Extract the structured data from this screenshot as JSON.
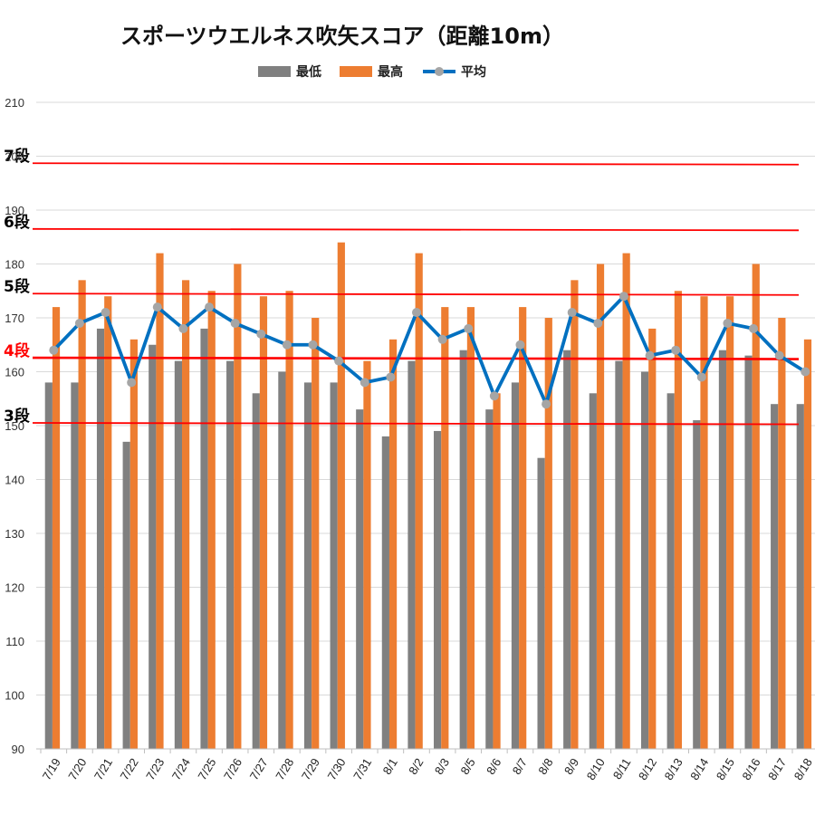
{
  "chart_data": {
    "type": "bar",
    "title": "スポーツウエルネス吹矢スコア（距離10m）",
    "xlabel": "",
    "ylabel": "",
    "ylim": [
      90,
      210
    ],
    "yticks": [
      90,
      100,
      110,
      120,
      130,
      140,
      150,
      160,
      170,
      180,
      190,
      200,
      210
    ],
    "legend_position": "top-center",
    "grid": true,
    "categories": [
      "7/19",
      "7/20",
      "7/21",
      "7/22",
      "7/23",
      "7/24",
      "7/25",
      "7/26",
      "7/27",
      "7/28",
      "7/29",
      "7/30",
      "7/31",
      "8/1",
      "8/2",
      "8/3",
      "8/5",
      "8/6",
      "8/7",
      "8/8",
      "8/9",
      "8/10",
      "8/11",
      "8/12",
      "8/13",
      "8/14",
      "8/15",
      "8/16",
      "8/17",
      "8/18"
    ],
    "series": [
      {
        "name": "最低",
        "type": "bar",
        "color": "#808080",
        "values": [
          158,
          158,
          168,
          147,
          165,
          162,
          168,
          162,
          156,
          160,
          158,
          158,
          153,
          148,
          162,
          149,
          164,
          153,
          158,
          144,
          164,
          156,
          162,
          160,
          156,
          151,
          164,
          163,
          154,
          154
        ]
      },
      {
        "name": "最高",
        "type": "bar",
        "color": "#ED7D31",
        "values": [
          172,
          177,
          174,
          166,
          182,
          177,
          175,
          180,
          174,
          175,
          170,
          184,
          162,
          166,
          182,
          172,
          172,
          156,
          172,
          170,
          177,
          180,
          182,
          168,
          175,
          174,
          174,
          180,
          170,
          166
        ]
      },
      {
        "name": "平均",
        "type": "line",
        "color": "#0070C0",
        "marker_color": "#A5A5A5",
        "values": [
          164,
          169,
          171,
          158,
          172,
          168,
          172,
          169,
          167,
          165,
          165,
          162,
          158,
          159,
          171,
          166,
          168,
          155.5,
          165,
          154,
          171,
          169,
          174,
          163,
          164,
          159,
          169,
          168,
          163,
          160
        ]
      }
    ],
    "reference_lines": [
      {
        "label": "7段",
        "value": 198.7,
        "color": "#FF0000",
        "label_color": "#000000"
      },
      {
        "label": "6段",
        "value": 186.5,
        "color": "#FF0000",
        "label_color": "#000000"
      },
      {
        "label": "5段",
        "value": 174.5,
        "color": "#FF0000",
        "label_color": "#000000"
      },
      {
        "label": "4段",
        "value": 162.6,
        "color": "#FF0000",
        "label_color": "#FF0000"
      },
      {
        "label": "3段",
        "value": 150.5,
        "color": "#FF0000",
        "label_color": "#000000"
      }
    ]
  }
}
